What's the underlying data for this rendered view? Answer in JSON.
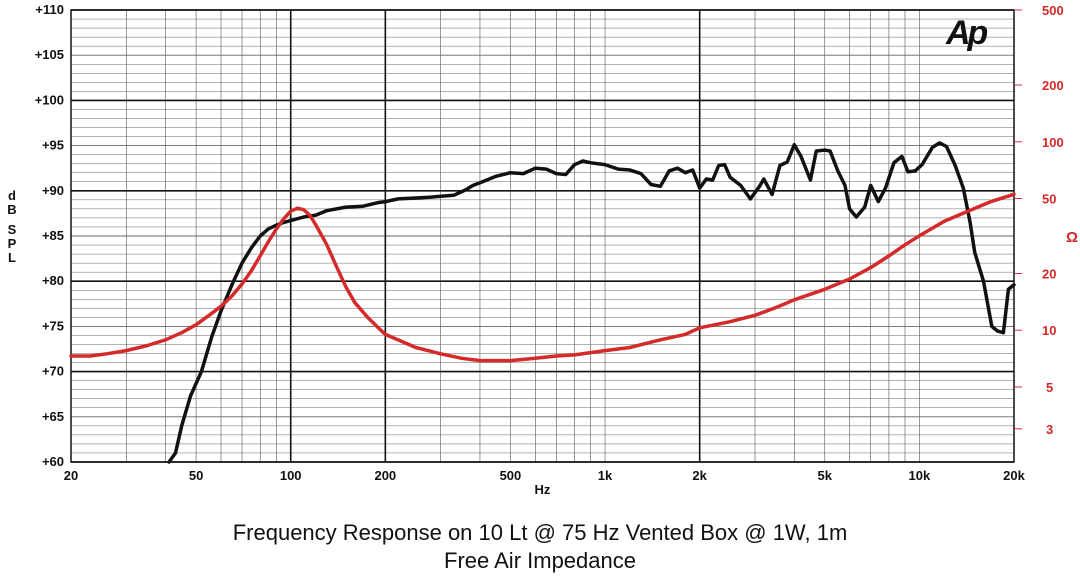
{
  "chart_data": {
    "type": "line",
    "title": "Frequency Response on 10 Lt @ 75 Hz Vented Box @ 1W, 1m",
    "subtitle": "Free Air Impedance",
    "logo_text": "Ap",
    "xlabel": "Hz",
    "ylabel": "dB SPL",
    "ylabel_right": "Ω",
    "x_scale": "log",
    "xlim": [
      20,
      20000
    ],
    "ylim": [
      60,
      110
    ],
    "ylim_right": [
      2,
      500
    ],
    "y_right_scale": "log",
    "grid": true,
    "x_ticks": [
      {
        "value": 20,
        "label": "20"
      },
      {
        "value": 50,
        "label": "50"
      },
      {
        "value": 100,
        "label": "100"
      },
      {
        "value": 200,
        "label": "200"
      },
      {
        "value": 500,
        "label": "500"
      },
      {
        "value": 1000,
        "label": "1k"
      },
      {
        "value": 2000,
        "label": "2k"
      },
      {
        "value": 5000,
        "label": "5k"
      },
      {
        "value": 10000,
        "label": "10k"
      },
      {
        "value": 20000,
        "label": "20k"
      }
    ],
    "y_ticks": [
      {
        "value": 110,
        "label": "+110"
      },
      {
        "value": 105,
        "label": "+105"
      },
      {
        "value": 100,
        "label": "+100"
      },
      {
        "value": 95,
        "label": "+95"
      },
      {
        "value": 90,
        "label": "+90"
      },
      {
        "value": 85,
        "label": "+85"
      },
      {
        "value": 80,
        "label": "+80"
      },
      {
        "value": 75,
        "label": "+75"
      },
      {
        "value": 70,
        "label": "+70"
      },
      {
        "value": 65,
        "label": "+65"
      },
      {
        "value": 60,
        "label": "+60"
      }
    ],
    "y_right_ticks": [
      {
        "value": 500,
        "label": "500"
      },
      {
        "value": 200,
        "label": "200"
      },
      {
        "value": 100,
        "label": "100"
      },
      {
        "value": 50,
        "label": "50"
      },
      {
        "value": 20,
        "label": "20"
      },
      {
        "value": 10,
        "label": "10"
      },
      {
        "value": 5,
        "label": "5"
      },
      {
        "value": 3,
        "label": "3"
      }
    ],
    "series": [
      {
        "axis": "left",
        "color": "#111111",
        "points": [
          [
            41,
            60
          ],
          [
            43,
            61
          ],
          [
            45,
            64
          ],
          [
            48,
            67.3
          ],
          [
            52,
            70
          ],
          [
            56,
            73.8
          ],
          [
            60,
            76.7
          ],
          [
            65,
            79.6
          ],
          [
            70,
            82
          ],
          [
            75,
            83.7
          ],
          [
            80,
            85
          ],
          [
            85,
            85.8
          ],
          [
            90,
            86.2
          ],
          [
            95,
            86.5
          ],
          [
            100,
            86.7
          ],
          [
            110,
            87.1
          ],
          [
            120,
            87.3
          ],
          [
            130,
            87.8
          ],
          [
            150,
            88.2
          ],
          [
            170,
            88.3
          ],
          [
            190,
            88.7
          ],
          [
            200,
            88.8
          ],
          [
            220,
            89.1
          ],
          [
            250,
            89.2
          ],
          [
            280,
            89.3
          ],
          [
            300,
            89.4
          ],
          [
            330,
            89.5
          ],
          [
            360,
            90.1
          ],
          [
            380,
            90.6
          ],
          [
            400,
            90.9
          ],
          [
            450,
            91.6
          ],
          [
            500,
            92
          ],
          [
            550,
            91.9
          ],
          [
            600,
            92.5
          ],
          [
            650,
            92.4
          ],
          [
            700,
            91.9
          ],
          [
            750,
            91.8
          ],
          [
            800,
            92.9
          ],
          [
            850,
            93.3
          ],
          [
            900,
            93.1
          ],
          [
            1000,
            92.9
          ],
          [
            1100,
            92.4
          ],
          [
            1200,
            92.3
          ],
          [
            1300,
            91.9
          ],
          [
            1400,
            90.7
          ],
          [
            1500,
            90.5
          ],
          [
            1600,
            92.2
          ],
          [
            1700,
            92.5
          ],
          [
            1800,
            92
          ],
          [
            1900,
            92.3
          ],
          [
            2000,
            90.3
          ],
          [
            2100,
            91.3
          ],
          [
            2200,
            91.2
          ],
          [
            2300,
            92.8
          ],
          [
            2400,
            92.9
          ],
          [
            2500,
            91.5
          ],
          [
            2700,
            90.6
          ],
          [
            2900,
            89.1
          ],
          [
            3100,
            90.5
          ],
          [
            3200,
            91.3
          ],
          [
            3400,
            89.6
          ],
          [
            3600,
            92.8
          ],
          [
            3800,
            93.2
          ],
          [
            4000,
            95.1
          ],
          [
            4200,
            93.8
          ],
          [
            4500,
            91.2
          ],
          [
            4700,
            94.4
          ],
          [
            5000,
            94.5
          ],
          [
            5200,
            94.4
          ],
          [
            5500,
            92.2
          ],
          [
            5800,
            90.6
          ],
          [
            6000,
            88
          ],
          [
            6300,
            87.1
          ],
          [
            6700,
            88.2
          ],
          [
            7000,
            90.6
          ],
          [
            7400,
            88.8
          ],
          [
            7800,
            90.3
          ],
          [
            8300,
            93.1
          ],
          [
            8800,
            93.8
          ],
          [
            9200,
            92.1
          ],
          [
            9700,
            92.2
          ],
          [
            10200,
            92.9
          ],
          [
            11000,
            94.8
          ],
          [
            11600,
            95.3
          ],
          [
            12200,
            94.9
          ],
          [
            13000,
            92.8
          ],
          [
            13800,
            90.3
          ],
          [
            14500,
            86.5
          ],
          [
            15000,
            83.2
          ],
          [
            16000,
            80
          ],
          [
            17000,
            75
          ],
          [
            17700,
            74.5
          ],
          [
            18500,
            74.3
          ],
          [
            19200,
            79.1
          ],
          [
            20000,
            79.6
          ]
        ]
      },
      {
        "axis": "right",
        "color": "#d42a2a",
        "points": [
          [
            20,
            7.3
          ],
          [
            23,
            7.3
          ],
          [
            26,
            7.5
          ],
          [
            30,
            7.8
          ],
          [
            35,
            8.3
          ],
          [
            40,
            8.9
          ],
          [
            45,
            9.7
          ],
          [
            50,
            10.7
          ],
          [
            55,
            12
          ],
          [
            60,
            13.4
          ],
          [
            65,
            15.2
          ],
          [
            70,
            17.6
          ],
          [
            75,
            20.7
          ],
          [
            80,
            24.8
          ],
          [
            85,
            29.6
          ],
          [
            90,
            34.4
          ],
          [
            95,
            39
          ],
          [
            100,
            42.8
          ],
          [
            105,
            44.4
          ],
          [
            110,
            43.6
          ],
          [
            115,
            40.7
          ],
          [
            120,
            36.4
          ],
          [
            130,
            28.6
          ],
          [
            140,
            21.7
          ],
          [
            150,
            16.9
          ],
          [
            160,
            14
          ],
          [
            175,
            11.8
          ],
          [
            190,
            10.3
          ],
          [
            200,
            9.5
          ],
          [
            250,
            8.1
          ],
          [
            300,
            7.5
          ],
          [
            350,
            7.1
          ],
          [
            400,
            6.9
          ],
          [
            500,
            6.9
          ],
          [
            600,
            7.1
          ],
          [
            700,
            7.3
          ],
          [
            800,
            7.4
          ],
          [
            1000,
            7.8
          ],
          [
            1200,
            8.1
          ],
          [
            1500,
            8.9
          ],
          [
            1800,
            9.5
          ],
          [
            2000,
            10.3
          ],
          [
            2500,
            11.1
          ],
          [
            3000,
            12
          ],
          [
            3500,
            13.2
          ],
          [
            4000,
            14.5
          ],
          [
            5000,
            16.5
          ],
          [
            6000,
            18.7
          ],
          [
            7000,
            21.5
          ],
          [
            8000,
            24.8
          ],
          [
            9000,
            28.4
          ],
          [
            10000,
            31.7
          ],
          [
            12000,
            37.9
          ],
          [
            15000,
            44.3
          ],
          [
            17000,
            48.3
          ],
          [
            20000,
            52.6
          ]
        ]
      }
    ]
  }
}
